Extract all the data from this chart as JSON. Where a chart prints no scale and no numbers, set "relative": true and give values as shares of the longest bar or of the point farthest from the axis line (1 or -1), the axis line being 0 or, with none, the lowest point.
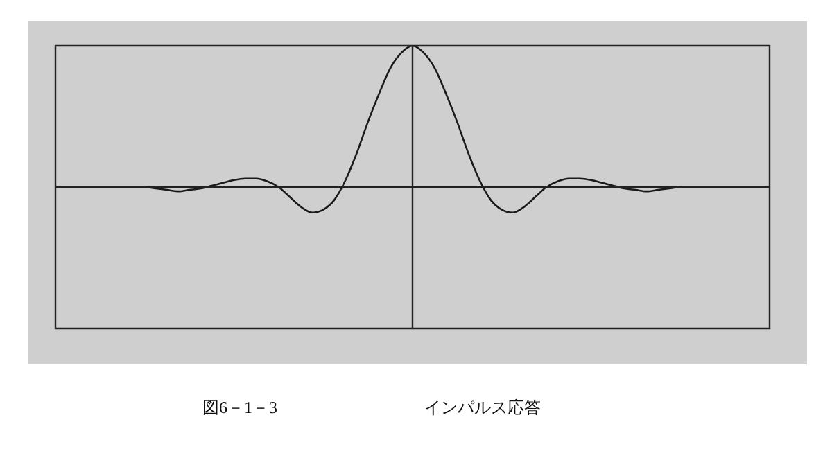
{
  "chart_data": {
    "type": "line",
    "title": "図6－1－3",
    "subtitle": "インパルス応答",
    "relative": true,
    "color": "#1a1a1a",
    "categories": [
      null,
      null,
      null,
      null,
      null,
      null,
      null,
      null,
      null,
      null,
      null,
      null,
      null,
      null,
      null,
      null,
      null,
      null,
      null,
      null,
      null,
      null,
      null,
      null,
      null,
      null,
      null,
      null,
      null,
      null,
      null,
      null,
      null,
      null,
      null,
      null,
      null,
      null,
      null,
      null,
      null,
      null,
      null,
      null,
      null,
      null,
      null,
      null,
      null,
      null,
      null,
      null,
      null,
      null,
      null,
      null,
      null,
      null,
      null,
      null,
      null,
      null,
      null,
      null,
      null
    ],
    "values": [
      0,
      0,
      0,
      0,
      0,
      0,
      0,
      0,
      0,
      -0.01,
      -0.02,
      -0.03,
      -0.02,
      -0.01,
      0.01,
      0.03,
      0.05,
      0.06,
      0.06,
      0.04,
      0,
      -0.07,
      -0.14,
      -0.18,
      -0.16,
      -0.09,
      0.05,
      0.24,
      0.46,
      0.66,
      0.84,
      0.95,
      1,
      0.95,
      0.84,
      0.66,
      0.46,
      0.24,
      0.05,
      -0.09,
      -0.16,
      -0.18,
      -0.14,
      -0.07,
      0,
      0.04,
      0.06,
      0.06,
      0.05,
      0.03,
      0.01,
      -0.01,
      -0.02,
      -0.03,
      -0.02,
      -0.01,
      0,
      0,
      0,
      0,
      0,
      0,
      0,
      0,
      0
    ]
  }
}
